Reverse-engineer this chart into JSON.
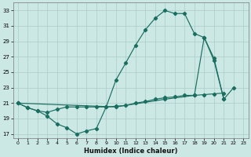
{
  "xlabel": "Humidex (Indice chaleur)",
  "bg_color": "#cce8e5",
  "grid_color": "#aaccca",
  "line_color": "#1a6e60",
  "xlim": [
    -0.5,
    23.5
  ],
  "ylim": [
    16.5,
    34.0
  ],
  "xticks": [
    0,
    1,
    2,
    3,
    4,
    5,
    6,
    7,
    8,
    9,
    10,
    11,
    12,
    13,
    14,
    15,
    16,
    17,
    18,
    19,
    20,
    21,
    22,
    23
  ],
  "yticks": [
    17,
    19,
    21,
    23,
    25,
    27,
    29,
    31,
    33
  ],
  "series1_x": [
    0,
    1,
    2,
    3,
    4,
    5,
    6,
    7,
    8,
    9,
    10,
    11,
    12,
    13,
    14,
    15,
    16,
    17,
    18,
    19,
    20,
    21,
    22
  ],
  "series1_y": [
    21.0,
    20.4,
    20.0,
    19.3,
    18.3,
    17.8,
    17.0,
    17.4,
    17.7,
    20.5,
    24.0,
    26.2,
    28.5,
    30.5,
    32.0,
    33.0,
    32.6,
    32.6,
    30.0,
    29.5,
    26.8,
    21.5,
    23.0
  ],
  "series2_x": [
    0,
    1,
    2,
    3,
    4,
    5,
    6,
    7,
    8,
    9,
    10,
    11,
    12,
    13,
    14,
    15,
    16,
    17,
    18,
    19,
    20,
    21
  ],
  "series2_y": [
    21.0,
    20.4,
    20.0,
    19.8,
    20.2,
    20.5,
    20.5,
    20.5,
    20.5,
    20.5,
    20.6,
    20.7,
    21.0,
    21.2,
    21.5,
    21.7,
    21.8,
    22.0,
    22.0,
    22.1,
    22.2,
    22.3
  ],
  "series3_x": [
    0,
    10,
    15,
    18,
    19,
    20,
    21
  ],
  "series3_y": [
    21.0,
    20.5,
    21.5,
    22.0,
    29.5,
    26.5,
    21.5
  ]
}
